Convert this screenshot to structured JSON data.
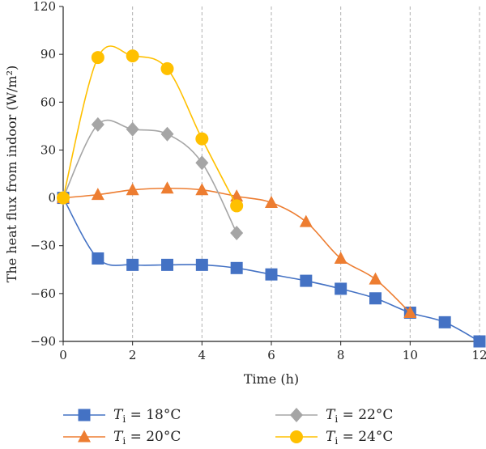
{
  "chart_data": {
    "type": "line",
    "xlabel": "Time (h)",
    "ylabel": "The heat flux from indoor (W/m²)",
    "xlim": [
      0,
      12
    ],
    "ylim": [
      -90,
      120
    ],
    "xticks": [
      "0",
      "2",
      "4",
      "6",
      "8",
      "10",
      "12"
    ],
    "yticks": [
      "120",
      "90",
      "60",
      "30",
      "0",
      "-30",
      "-60",
      "-90"
    ],
    "grid": "vertical dashed",
    "legend_position": "bottom",
    "series": [
      {
        "name": "Ti = 18°C",
        "label_main": "T",
        "label_sub": "i",
        "label_rest": " = 18°C",
        "color": "#4472c4",
        "marker": "square",
        "x": [
          0,
          1,
          2,
          3,
          4,
          5,
          6,
          7,
          8,
          9,
          10,
          11,
          12
        ],
        "y": [
          0,
          -38,
          -42,
          -42,
          -42,
          -44,
          -48,
          -52,
          -57,
          -63,
          -72,
          -78,
          -90
        ]
      },
      {
        "name": "Ti = 20°C",
        "label_main": "T",
        "label_sub": "i",
        "label_rest": " = 20°C",
        "color": "#ed7d31",
        "marker": "triangle",
        "x": [
          0,
          1,
          2,
          3,
          4,
          5,
          6,
          7,
          8,
          9,
          10
        ],
        "y": [
          0,
          2,
          5,
          6,
          5,
          1,
          -3,
          -15,
          -38,
          -51,
          -72
        ]
      },
      {
        "name": "Ti = 22°C",
        "label_main": "T",
        "label_sub": "i",
        "label_rest": " = 22°C",
        "color": "#a5a5a5",
        "marker": "diamond",
        "x": [
          0,
          1,
          2,
          3,
          4,
          5
        ],
        "y": [
          0,
          46,
          43,
          40,
          22,
          -22
        ]
      },
      {
        "name": "Ti = 24°C",
        "label_main": "T",
        "label_sub": "i",
        "label_rest": " = 24°C",
        "color": "#ffc000",
        "marker": "circle",
        "x": [
          0,
          1,
          2,
          3,
          4,
          5
        ],
        "y": [
          0,
          88,
          89,
          81,
          37,
          -5
        ]
      }
    ]
  }
}
